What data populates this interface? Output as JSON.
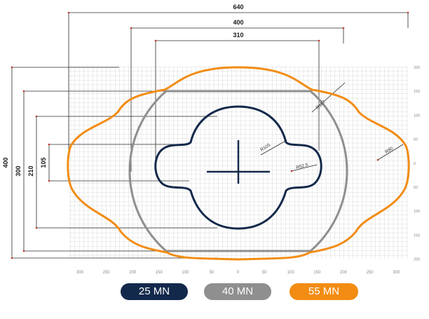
{
  "dimensions": {
    "widths": [
      "640",
      "400",
      "310"
    ],
    "heights": [
      "400",
      "300",
      "210",
      "105"
    ]
  },
  "radius_labels": [
    "R105",
    "R52.5",
    "R167",
    "R80"
  ],
  "y_ticks": [
    "200",
    "150",
    "100",
    "50",
    "0",
    "50",
    "100",
    "150",
    "200"
  ],
  "x_ticks": [
    "300",
    "250",
    "200",
    "150",
    "100",
    "50",
    "0",
    "50",
    "100",
    "150",
    "200",
    "250",
    "300"
  ],
  "legend": {
    "items": [
      {
        "label": "25 MN",
        "color": "#13294b"
      },
      {
        "label": "40 MN",
        "color": "#8f8f8f"
      },
      {
        "label": "55 MN",
        "color": "#f28c13"
      }
    ]
  }
}
